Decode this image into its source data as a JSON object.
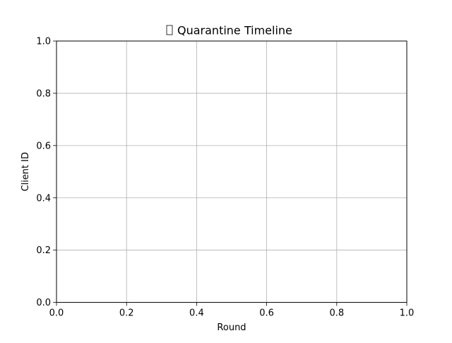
{
  "chart_data": {
    "type": "scatter",
    "title": "Quarantine Timeline",
    "title_icon": "missing-glyph-box",
    "xlabel": "Round",
    "ylabel": "Client ID",
    "xlim": [
      0.0,
      1.0
    ],
    "ylim": [
      0.0,
      1.0
    ],
    "xticks": [
      "0.0",
      "0.2",
      "0.4",
      "0.6",
      "0.8",
      "1.0"
    ],
    "yticks": [
      "0.0",
      "0.2",
      "0.4",
      "0.6",
      "0.8",
      "1.0"
    ],
    "grid": true,
    "series": [],
    "colors": {
      "grid": "#b0b0b0",
      "axes": "#000000",
      "background": "#ffffff"
    }
  }
}
